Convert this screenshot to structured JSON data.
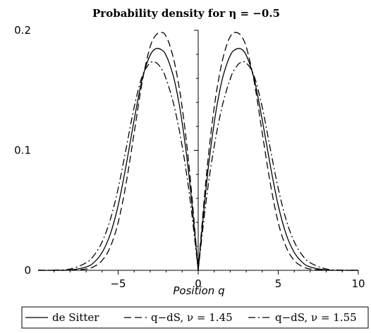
{
  "chart_data": {
    "type": "line",
    "title": "Probability density for η = −0.5",
    "xlabel": "Position q",
    "ylabel": "",
    "xlim": [
      -10,
      10
    ],
    "ylim": [
      0,
      0.2
    ],
    "x_ticks": [
      {
        "value": -5,
        "label": "−5"
      },
      {
        "value": 0,
        "label": "0"
      },
      {
        "value": 5,
        "label": "5"
      },
      {
        "value": 10,
        "label": "10"
      }
    ],
    "y_ticks": [
      {
        "value": 0,
        "label": "0"
      },
      {
        "value": 0.1,
        "label": "0.1"
      },
      {
        "value": 0.2,
        "label": "0.2"
      }
    ],
    "grid": false,
    "legend_position": "bottom",
    "series": [
      {
        "name": "de Sitter",
        "style": "solid",
        "x": [
          -10,
          -9,
          -8,
          -7,
          -6.5,
          -6,
          -5.5,
          -5,
          -4.5,
          -4,
          -3.5,
          -3,
          -2.6,
          -2.2,
          -2,
          -1.8,
          -1.5,
          -1.2,
          -1,
          -0.8,
          -0.6,
          -0.4,
          -0.2,
          0,
          0.2,
          0.4,
          0.6,
          0.8,
          1,
          1.2,
          1.5,
          1.8,
          2,
          2.2,
          2.6,
          3,
          3.5,
          4,
          4.5,
          5,
          5.5,
          6,
          6.5,
          7,
          8,
          9,
          10
        ],
        "y": [
          0,
          0,
          0.0003,
          0.0028,
          0.0067,
          0.0149,
          0.0298,
          0.054,
          0.0876,
          0.1254,
          0.1591,
          0.1792,
          0.1848,
          0.1829,
          0.1789,
          0.1724,
          0.1591,
          0.1394,
          0.1228,
          0.1037,
          0.0819,
          0.0566,
          0.0288,
          0,
          0.0288,
          0.0566,
          0.0819,
          0.1037,
          0.1228,
          0.1394,
          0.1591,
          0.1724,
          0.1789,
          0.1829,
          0.1848,
          0.1792,
          0.1591,
          0.1254,
          0.0876,
          0.054,
          0.0298,
          0.0149,
          0.0067,
          0.0028,
          0.0003,
          0,
          0
        ]
      },
      {
        "name": "q−dS, ν = 1.45",
        "style": "dash",
        "x": [
          -10,
          -9,
          -8,
          -7,
          -6.5,
          -6,
          -5.5,
          -5,
          -4.5,
          -4,
          -3.5,
          -3,
          -2.6,
          -2.2,
          -2,
          -1.8,
          -1.5,
          -1.2,
          -1,
          -0.8,
          -0.6,
          -0.4,
          -0.2,
          0,
          0.2,
          0.4,
          0.6,
          0.8,
          1,
          1.2,
          1.5,
          1.8,
          2,
          2.2,
          2.6,
          3,
          3.5,
          4,
          4.5,
          5,
          5.5,
          6,
          6.5,
          7,
          8,
          9,
          10
        ],
        "y": [
          0,
          0,
          0.0001,
          0.0011,
          0.0032,
          0.0082,
          0.0192,
          0.0397,
          0.0727,
          0.1145,
          0.1568,
          0.1862,
          0.1966,
          0.198,
          0.1947,
          0.1885,
          0.1742,
          0.1534,
          0.1357,
          0.1148,
          0.0908,
          0.0628,
          0.032,
          0,
          0.032,
          0.0628,
          0.0908,
          0.1148,
          0.1357,
          0.1534,
          0.1742,
          0.1885,
          0.1947,
          0.198,
          0.1966,
          0.1862,
          0.1568,
          0.1145,
          0.0727,
          0.0397,
          0.0192,
          0.0082,
          0.0032,
          0.0011,
          0.0001,
          0,
          0
        ]
      },
      {
        "name": "q−dS, ν = 1.55",
        "style": "dashdot",
        "x": [
          -10,
          -9,
          -8,
          -7,
          -6.5,
          -6,
          -5.5,
          -5,
          -4.5,
          -4,
          -3.5,
          -3,
          -2.6,
          -2.2,
          -2,
          -1.8,
          -1.5,
          -1.2,
          -1,
          -0.8,
          -0.6,
          -0.4,
          -0.2,
          0,
          0.2,
          0.4,
          0.6,
          0.8,
          1,
          1.2,
          1.5,
          1.8,
          2,
          2.2,
          2.6,
          3,
          3.5,
          4,
          4.5,
          5,
          5.5,
          6,
          6.5,
          7,
          8,
          9,
          10
        ],
        "y": [
          0.0001,
          0.0002,
          0.0011,
          0.0063,
          0.0126,
          0.0238,
          0.0418,
          0.0681,
          0.1015,
          0.1359,
          0.1616,
          0.1728,
          0.1728,
          0.1659,
          0.1593,
          0.1513,
          0.1368,
          0.118,
          0.1034,
          0.087,
          0.0685,
          0.0472,
          0.024,
          0,
          0.024,
          0.0472,
          0.0685,
          0.087,
          0.1034,
          0.118,
          0.1368,
          0.1513,
          0.1593,
          0.1659,
          0.1728,
          0.1728,
          0.1616,
          0.1359,
          0.1015,
          0.0681,
          0.0418,
          0.0238,
          0.0126,
          0.0063,
          0.0011,
          0.0002,
          0.0001
        ]
      }
    ]
  }
}
